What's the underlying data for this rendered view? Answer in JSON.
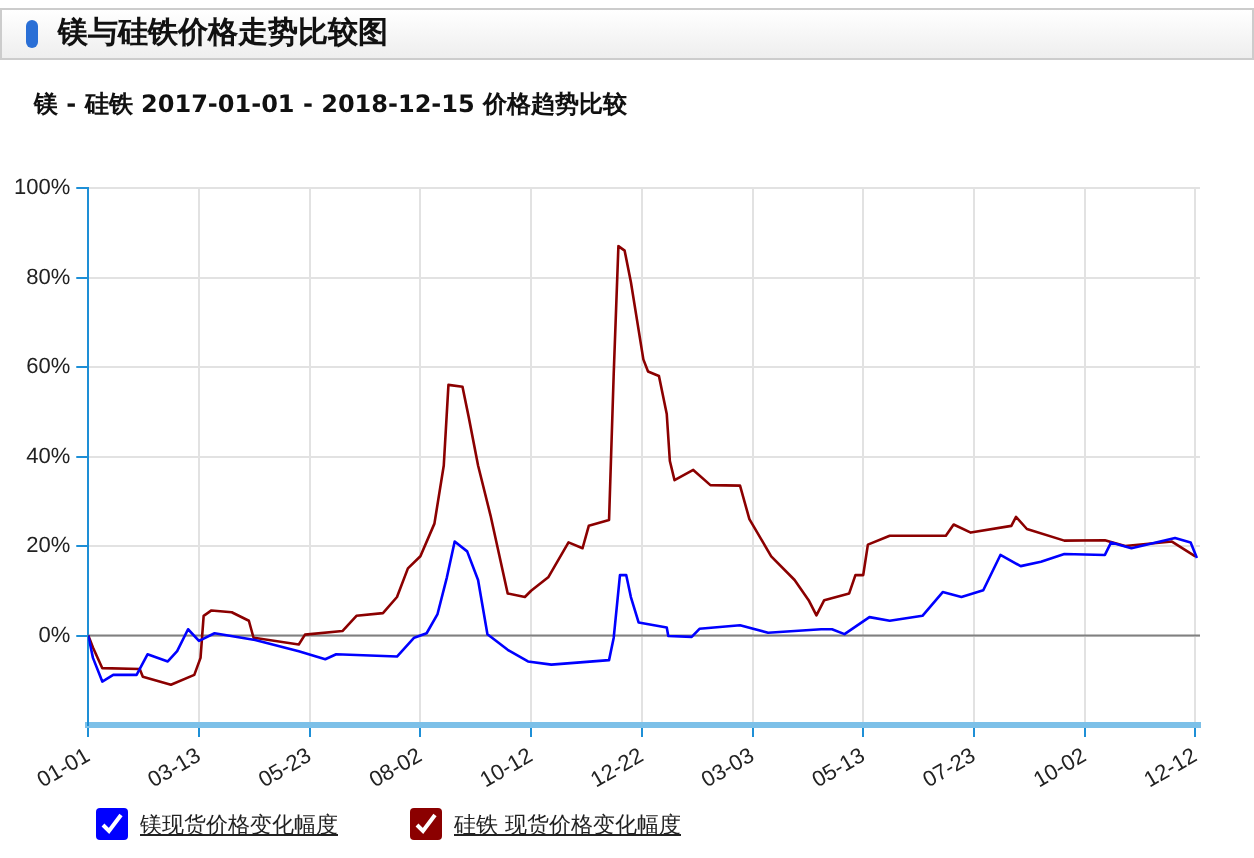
{
  "chart_data": {
    "type": "line",
    "title": "镁与硅铁价格走势比较图",
    "subtitle": "镁 - 硅铁 2017-01-01 - 2018-12-15 价格趋势比较",
    "xlim": [
      "2017-01-01",
      "2018-12-15"
    ],
    "xticks": [
      {
        "value": "2017-01-01",
        "label": "01-01"
      },
      {
        "value": "2017-03-13",
        "label": "03-13"
      },
      {
        "value": "2017-05-23",
        "label": "05-23"
      },
      {
        "value": "2017-08-02",
        "label": "08-02"
      },
      {
        "value": "2017-10-12",
        "label": "10-12"
      },
      {
        "value": "2017-12-22",
        "label": "12-22"
      },
      {
        "value": "2018-03-03",
        "label": "03-03"
      },
      {
        "value": "2018-05-13",
        "label": "05-13"
      },
      {
        "value": "2018-07-23",
        "label": "07-23"
      },
      {
        "value": "2018-10-02",
        "label": "10-02"
      },
      {
        "value": "2018-12-12",
        "label": "12-12"
      }
    ],
    "ylim": [
      -20,
      100
    ],
    "yticks": [
      {
        "value": 0,
        "label": "0%"
      },
      {
        "value": 20,
        "label": "20%"
      },
      {
        "value": 40,
        "label": "40%"
      },
      {
        "value": 60,
        "label": "60%"
      },
      {
        "value": 80,
        "label": "80%"
      },
      {
        "value": 100,
        "label": "100%"
      }
    ],
    "grid": true,
    "legend": "bottom left",
    "ref_lines": [
      {
        "axis": "y",
        "value": 0,
        "color": "#808080"
      }
    ],
    "series": [
      {
        "name": "镁现货价格变化幅度",
        "color": "#0000ff",
        "x": [
          "2017-01-01",
          "2017-01-04",
          "2017-01-10",
          "2017-01-17",
          "2017-02-01",
          "2017-02-08",
          "2017-02-21",
          "2017-02-27",
          "2017-03-06",
          "2017-03-13",
          "2017-03-23",
          "2017-04-18",
          "2017-05-16",
          "2017-06-02",
          "2017-06-09",
          "2017-07-18",
          "2017-07-29",
          "2017-08-06",
          "2017-08-13",
          "2017-08-19",
          "2017-08-24",
          "2017-09-01",
          "2017-09-08",
          "2017-09-14",
          "2017-09-27",
          "2017-10-10",
          "2017-10-25",
          "2017-12-01",
          "2017-12-04",
          "2017-12-08",
          "2017-12-12",
          "2017-12-15",
          "2017-12-20",
          "2018-01-07",
          "2018-01-08",
          "2018-01-23",
          "2018-01-28",
          "2018-02-23",
          "2018-03-13",
          "2018-04-16",
          "2018-04-23",
          "2018-05-01",
          "2018-05-17",
          "2018-05-30",
          "2018-06-20",
          "2018-07-03",
          "2018-07-15",
          "2018-07-29",
          "2018-08-09",
          "2018-08-22",
          "2018-09-04",
          "2018-09-19",
          "2018-10-15",
          "2018-10-19",
          "2018-11-01",
          "2018-11-29",
          "2018-12-09",
          "2018-12-13"
        ],
        "values": [
          0,
          -5,
          -10.3,
          -8.8,
          -8.8,
          -4.2,
          -5.8,
          -3.5,
          1.4,
          -1.2,
          0.5,
          -1,
          -3.5,
          -5.3,
          -4.2,
          -4.7,
          -0.5,
          0.5,
          4.8,
          13,
          21,
          18.8,
          12.4,
          0.3,
          -3.2,
          -5.8,
          -6.5,
          -5.5,
          -0.5,
          13.5,
          13.5,
          8.6,
          2.9,
          1.8,
          -0.1,
          -0.3,
          1.5,
          2.3,
          0.6,
          1.4,
          1.4,
          0.3,
          4.1,
          3.3,
          4.4,
          9.7,
          8.6,
          10.1,
          18,
          15.5,
          16.5,
          18.2,
          18,
          20.8,
          19.5,
          21.8,
          20.8,
          17.3
        ]
      },
      {
        "name": "硅铁 现货价格变化幅度",
        "color": "#8b0000",
        "x": [
          "2017-01-01",
          "2017-01-04",
          "2017-01-10",
          "2017-02-03",
          "2017-02-05",
          "2017-02-23",
          "2017-03-10",
          "2017-03-14",
          "2017-03-16",
          "2017-03-21",
          "2017-04-03",
          "2017-04-14",
          "2017-04-17",
          "2017-05-16",
          "2017-05-20",
          "2017-06-13",
          "2017-06-22",
          "2017-07-09",
          "2017-07-18",
          "2017-07-25",
          "2017-08-02",
          "2017-08-11",
          "2017-08-17",
          "2017-08-20",
          "2017-08-29",
          "2017-09-02",
          "2017-09-08",
          "2017-09-16",
          "2017-09-27",
          "2017-10-08",
          "2017-10-12",
          "2017-10-23",
          "2017-11-05",
          "2017-11-14",
          "2017-11-18",
          "2017-12-01",
          "2017-12-04",
          "2017-12-07",
          "2017-12-11",
          "2017-12-15",
          "2017-12-23",
          "2017-12-26",
          "2018-01-02",
          "2018-01-07",
          "2018-01-09",
          "2018-01-12",
          "2018-01-24",
          "2018-02-04",
          "2018-02-23",
          "2018-03-01",
          "2018-03-15",
          "2018-03-30",
          "2018-04-08",
          "2018-04-13",
          "2018-04-18",
          "2018-05-04",
          "2018-05-08",
          "2018-05-13",
          "2018-05-16",
          "2018-05-30",
          "2018-07-05",
          "2018-07-10",
          "2018-07-21",
          "2018-08-16",
          "2018-08-19",
          "2018-08-26",
          "2018-09-19",
          "2018-10-15",
          "2018-10-28",
          "2018-11-27",
          "2018-12-12"
        ],
        "values": [
          0,
          -2.7,
          -7.3,
          -7.5,
          -9.2,
          -11,
          -8.8,
          -5,
          4.4,
          5.6,
          5.2,
          3.3,
          -0.5,
          -2,
          0.2,
          1,
          4.4,
          5,
          8.6,
          15,
          17.7,
          25,
          38,
          56,
          55.6,
          48.8,
          38,
          26.8,
          9.4,
          8.6,
          10,
          13,
          20.8,
          19.5,
          24.5,
          25.8,
          58.6,
          87,
          86,
          79,
          61.7,
          59,
          58,
          49.5,
          39,
          34.7,
          37,
          33.6,
          33.5,
          26,
          17.7,
          12.4,
          7.9,
          4.5,
          7.9,
          9.4,
          13.5,
          13.5,
          20.3,
          22.3,
          22.3,
          24.8,
          23,
          24.5,
          26.5,
          23.8,
          21.2,
          21.3,
          20,
          21,
          17.7
        ]
      }
    ]
  }
}
